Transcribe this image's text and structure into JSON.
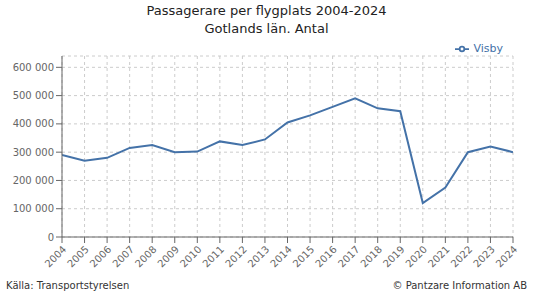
{
  "chart_data": {
    "type": "line",
    "title": "Passagerare per flygplats 2004-2024",
    "subtitle": "Gotlands län. Antal",
    "annotations": [
      "Källa: Transportstyrelsen",
      "© Pantzare Information AB"
    ],
    "x": [
      2004,
      2005,
      2006,
      2007,
      2008,
      2009,
      2010,
      2011,
      2012,
      2013,
      2014,
      2015,
      2016,
      2017,
      2018,
      2019,
      2020,
      2021,
      2022,
      2023,
      2024
    ],
    "series": [
      {
        "name": "Visby",
        "color": "#4472a8",
        "values": [
          290000,
          270000,
          280000,
          315000,
          325000,
          300000,
          302000,
          338000,
          325000,
          345000,
          405000,
          430000,
          460000,
          490000,
          455000,
          445000,
          120000,
          175000,
          300000,
          320000,
          300000
        ]
      }
    ],
    "xlim": [
      2004,
      2024
    ],
    "xticks": [
      2004,
      2005,
      2006,
      2007,
      2008,
      2009,
      2010,
      2011,
      2012,
      2013,
      2014,
      2015,
      2016,
      2017,
      2018,
      2019,
      2020,
      2021,
      2022,
      2023,
      2024
    ],
    "ylim": [
      0,
      640000
    ],
    "yticks": [
      0,
      {
        "value": 100000,
        "label": "100 000"
      },
      {
        "value": 200000,
        "label": "200 000"
      },
      {
        "value": 300000,
        "label": "300 000"
      },
      {
        "value": 400000,
        "label": "400 000"
      },
      {
        "value": 500000,
        "label": "500 000"
      },
      {
        "value": 600000,
        "label": "600 000"
      }
    ],
    "grid": true,
    "legend": "upper right"
  }
}
